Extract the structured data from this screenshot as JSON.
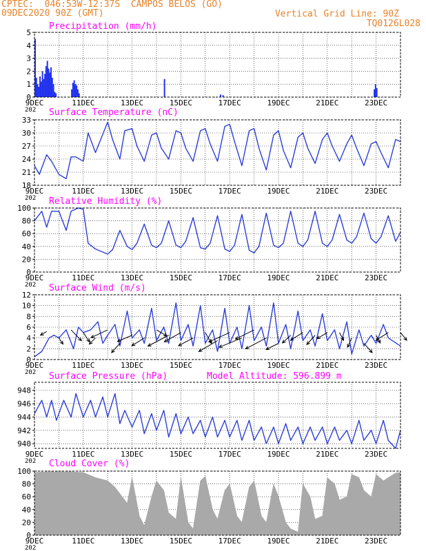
{
  "header": {
    "location": "CPTEC:  046:53W-12:37S  CAMPOS BELOS (GO)",
    "date": "09DEC2020 90Z (GMT)",
    "grid_note": "Vertical Grid Line: 90Z",
    "code": "TQ0126L028"
  },
  "colors": {
    "header": "#e8822a",
    "title": "#ff00ff",
    "series": "#2c3ed8",
    "bar": "#2233ee",
    "cloud": "#a9a9a9",
    "wind_arrow": "#000000"
  },
  "x_ticks": [
    "9DEC",
    "11DEC",
    "13DEC",
    "15DEC",
    "17DEC",
    "19DEC",
    "21DEC",
    "23DEC"
  ],
  "chart_data": [
    {
      "type": "bar",
      "title": "Precipitation (mm/h)",
      "ylim": [
        0,
        5
      ],
      "yticks": [
        0,
        1,
        2,
        3,
        4,
        5
      ],
      "year_label": "202",
      "grid": true,
      "bars": [
        [
          0.0,
          4.5
        ],
        [
          0.05,
          1.5
        ],
        [
          0.1,
          1.0
        ],
        [
          0.15,
          0.8
        ],
        [
          0.2,
          1.6
        ],
        [
          0.25,
          1.2
        ],
        [
          0.3,
          2.0
        ],
        [
          0.35,
          1.4
        ],
        [
          0.4,
          1.8
        ],
        [
          0.45,
          2.4
        ],
        [
          0.5,
          2.8
        ],
        [
          0.55,
          2.2
        ],
        [
          0.6,
          1.9
        ],
        [
          0.65,
          2.3
        ],
        [
          0.7,
          1.5
        ],
        [
          0.75,
          1.0
        ],
        [
          0.8,
          0.4
        ],
        [
          0.85,
          0.3
        ],
        [
          1.5,
          0.6
        ],
        [
          1.55,
          1.1
        ],
        [
          1.6,
          1.3
        ],
        [
          1.65,
          1.0
        ],
        [
          1.7,
          0.9
        ],
        [
          1.75,
          0.6
        ],
        [
          1.8,
          0.3
        ],
        [
          5.3,
          1.4
        ],
        [
          7.6,
          0.2
        ],
        [
          7.7,
          0.15
        ],
        [
          13.9,
          0.6
        ],
        [
          13.95,
          1.0
        ],
        [
          14.0,
          0.7
        ]
      ]
    },
    {
      "type": "line",
      "title": "Surface Temperature (nC)",
      "ylim": [
        18,
        33
      ],
      "yticks": [
        18,
        21,
        24,
        27,
        30,
        33
      ],
      "year_label": "202",
      "grid": true,
      "x": [
        0,
        0.2,
        0.5,
        0.7,
        1.0,
        1.3,
        1.5,
        1.7,
        2.0,
        2.2,
        2.5,
        3.0,
        3.2,
        3.5,
        3.7,
        4.0,
        4.2,
        4.5,
        4.8,
        5.0,
        5.2,
        5.5,
        5.8,
        6.0,
        6.2,
        6.5,
        6.8,
        7.0,
        7.2,
        7.5,
        7.8,
        8.0,
        8.2,
        8.5,
        8.8,
        9.0,
        9.2,
        9.5,
        9.8,
        10.0,
        10.2,
        10.5,
        10.8,
        11.0,
        11.2,
        11.5,
        11.8,
        12.0,
        12.2,
        12.5,
        12.8,
        13.0,
        13.2,
        13.5,
        13.8,
        14.0,
        14.2,
        14.5,
        14.8,
        15.0
      ],
      "y": [
        22.5,
        20.5,
        25.0,
        23.5,
        20.5,
        19.5,
        24.5,
        24.5,
        23.5,
        30.0,
        25.5,
        32.5,
        28.5,
        24.0,
        30.5,
        31.0,
        27.0,
        23.5,
        29.5,
        30.0,
        26.5,
        24.0,
        30.5,
        30.0,
        26.5,
        23.5,
        30.5,
        31.0,
        27.5,
        23.5,
        31.5,
        32.0,
        28.0,
        22.5,
        30.5,
        31.0,
        26.5,
        21.5,
        29.5,
        30.5,
        26.0,
        22.0,
        29.0,
        30.0,
        26.5,
        23.0,
        28.5,
        30.0,
        27.0,
        23.5,
        27.5,
        29.5,
        26.5,
        22.5,
        27.5,
        28.0,
        25.5,
        22.0,
        28.5,
        28.0
      ]
    },
    {
      "type": "line",
      "title": "Relative Humidity (%)",
      "ylim": [
        0,
        100
      ],
      "yticks": [
        0,
        20,
        40,
        60,
        80,
        100
      ],
      "year_label": "202",
      "grid": true,
      "x": [
        0,
        0.3,
        0.5,
        0.7,
        1.0,
        1.3,
        1.5,
        1.8,
        2.0,
        2.2,
        2.5,
        3.0,
        3.2,
        3.5,
        3.8,
        4.0,
        4.2,
        4.5,
        4.8,
        5.0,
        5.2,
        5.5,
        5.8,
        6.0,
        6.2,
        6.5,
        6.8,
        7.0,
        7.2,
        7.5,
        7.8,
        8.0,
        8.2,
        8.5,
        8.8,
        9.0,
        9.2,
        9.5,
        9.8,
        10.0,
        10.2,
        10.5,
        10.8,
        11.0,
        11.2,
        11.5,
        11.8,
        12.0,
        12.2,
        12.5,
        12.8,
        13.0,
        13.2,
        13.5,
        13.8,
        14.0,
        14.2,
        14.5,
        14.8,
        15.0
      ],
      "y": [
        80,
        95,
        70,
        95,
        95,
        65,
        95,
        100,
        98,
        45,
        36,
        28,
        35,
        65,
        40,
        35,
        45,
        75,
        42,
        38,
        45,
        80,
        42,
        38,
        48,
        85,
        38,
        36,
        45,
        88,
        36,
        32,
        42,
        90,
        34,
        30,
        40,
        92,
        42,
        38,
        45,
        95,
        45,
        40,
        50,
        95,
        45,
        40,
        50,
        90,
        50,
        45,
        55,
        92,
        52,
        45,
        55,
        88,
        48,
        62
      ]
    },
    {
      "type": "line",
      "title": "Surface Wind (m/s)",
      "ylim": [
        0,
        12
      ],
      "yticks": [
        0,
        2,
        4,
        6,
        8,
        10,
        12
      ],
      "year_label": "202",
      "grid": true,
      "x": [
        0,
        0.3,
        0.6,
        0.8,
        1.0,
        1.3,
        1.6,
        1.8,
        2.0,
        2.3,
        2.6,
        2.8,
        3.0,
        3.3,
        3.5,
        3.8,
        4.0,
        4.3,
        4.5,
        4.8,
        5.0,
        5.3,
        5.5,
        5.8,
        6.0,
        6.3,
        6.5,
        6.8,
        7.0,
        7.3,
        7.5,
        7.8,
        8.0,
        8.3,
        8.5,
        8.8,
        9.0,
        9.3,
        9.5,
        9.8,
        10.0,
        10.3,
        10.5,
        10.8,
        11.0,
        11.3,
        11.5,
        11.8,
        12.0,
        12.3,
        12.5,
        12.8,
        13.0,
        13.3,
        13.5,
        13.8,
        14.0,
        14.3,
        14.5,
        15.0
      ],
      "y": [
        0.5,
        1.5,
        4.0,
        4.5,
        4.0,
        5.5,
        2.0,
        6.0,
        5.0,
        5.5,
        7.0,
        3.0,
        4.5,
        6.5,
        2.5,
        9.0,
        4.0,
        5.5,
        3.0,
        9.5,
        3.5,
        6.0,
        3.0,
        10.5,
        3.5,
        6.5,
        2.5,
        10.0,
        3.0,
        5.5,
        1.5,
        9.5,
        3.0,
        6.0,
        2.0,
        10.0,
        3.5,
        6.0,
        2.5,
        10.5,
        3.0,
        6.5,
        2.0,
        9.0,
        3.5,
        5.5,
        2.5,
        8.5,
        3.5,
        5.5,
        2.0,
        7.0,
        1.0,
        5.5,
        2.5,
        4.5,
        3.0,
        6.5,
        4.0,
        2.5
      ],
      "arrows": [
        [
          0.5,
          5.2,
          -0.15,
          0.12
        ],
        [
          1.0,
          4.0,
          0.1,
          0.2
        ],
        [
          1.5,
          5.5,
          0.25,
          0.35
        ],
        [
          2.0,
          5.0,
          0.15,
          0.3
        ],
        [
          2.5,
          4.0,
          -0.15,
          0.2
        ],
        [
          3.0,
          5.5,
          -0.4,
          0.25
        ],
        [
          3.5,
          3.0,
          -0.2,
          0.3
        ],
        [
          4.0,
          4.5,
          -0.35,
          0.2
        ],
        [
          4.5,
          4.0,
          -0.3,
          0.25
        ],
        [
          5.0,
          5.5,
          0.25,
          0.2
        ],
        [
          5.5,
          4.5,
          -0.5,
          0.35
        ],
        [
          6.0,
          5.0,
          -0.4,
          0.3
        ],
        [
          6.5,
          4.0,
          -0.35,
          0.25
        ],
        [
          7.0,
          5.0,
          0.15,
          0.35
        ],
        [
          7.5,
          3.5,
          -0.45,
          0.35
        ],
        [
          8.0,
          5.0,
          -0.5,
          0.3
        ],
        [
          8.5,
          4.0,
          -0.55,
          0.3
        ],
        [
          9.0,
          5.5,
          -0.45,
          0.3
        ],
        [
          9.5,
          4.0,
          -0.5,
          0.35
        ],
        [
          10.0,
          3.0,
          -0.3,
          0.2
        ],
        [
          10.5,
          4.5,
          -0.2,
          0.25
        ],
        [
          11.0,
          5.0,
          -0.3,
          0.25
        ],
        [
          11.5,
          4.5,
          -0.2,
          0.3
        ],
        [
          12.0,
          5.0,
          -0.25,
          0.2
        ],
        [
          12.5,
          5.0,
          0.1,
          0.25
        ],
        [
          13.0,
          4.0,
          -0.1,
          0.3
        ],
        [
          13.5,
          3.0,
          0.2,
          0.3
        ],
        [
          14.0,
          4.5,
          0.1,
          0.25
        ],
        [
          14.5,
          5.0,
          -0.3,
          0.25
        ],
        [
          15.0,
          5.0,
          0.15,
          0.25
        ]
      ]
    },
    {
      "type": "line",
      "title": "Surface Pressure (hPa)",
      "note": "Model Altitude: 596.899  m",
      "ylim": [
        939.3,
        949.2
      ],
      "yticks": [
        940,
        942,
        944,
        946,
        948
      ],
      "year_label": "202",
      "grid": true,
      "x": [
        0,
        0.3,
        0.5,
        0.7,
        0.9,
        1.2,
        1.5,
        1.7,
        2.0,
        2.3,
        2.5,
        2.8,
        3.0,
        3.3,
        3.5,
        3.7,
        4.0,
        4.3,
        4.5,
        4.8,
        5.0,
        5.3,
        5.5,
        5.8,
        6.0,
        6.3,
        6.5,
        6.8,
        7.0,
        7.3,
        7.5,
        7.8,
        8.0,
        8.3,
        8.5,
        8.8,
        9.0,
        9.3,
        9.5,
        9.8,
        10.0,
        10.3,
        10.5,
        10.8,
        11.0,
        11.3,
        11.5,
        11.8,
        12.0,
        12.3,
        12.5,
        12.8,
        13.0,
        13.3,
        13.5,
        13.8,
        14.0,
        14.3,
        14.5,
        14.8,
        15.0
      ],
      "y": [
        944.5,
        946.5,
        944.0,
        946.5,
        943.5,
        946.5,
        944.0,
        947.5,
        944.0,
        946.5,
        944.0,
        947.0,
        944.0,
        947.5,
        943.0,
        945.0,
        942.5,
        945.0,
        941.5,
        944.5,
        942.0,
        945.0,
        941.0,
        944.5,
        941.5,
        944.0,
        941.5,
        943.5,
        941.0,
        944.0,
        941.0,
        943.5,
        941.0,
        943.5,
        940.5,
        943.5,
        940.5,
        942.5,
        940.0,
        942.5,
        940.0,
        943.0,
        940.5,
        942.5,
        940.0,
        942.5,
        940.5,
        942.5,
        940.0,
        942.5,
        940.5,
        942.0,
        940.0,
        943.5,
        940.5,
        942.0,
        940.0,
        943.5,
        940.5,
        939.3,
        942.0
      ]
    },
    {
      "type": "area",
      "title": "Cloud Cover (%)",
      "ylim": [
        0,
        100
      ],
      "yticks": [
        0,
        20,
        40,
        60,
        80,
        100
      ],
      "year_label": "202",
      "grid": true,
      "x": [
        0,
        0.5,
        1.0,
        1.5,
        2.0,
        2.5,
        3.0,
        3.3,
        3.6,
        3.8,
        4.0,
        4.3,
        4.5,
        4.8,
        5.0,
        5.3,
        5.5,
        5.8,
        6.0,
        6.3,
        6.5,
        6.8,
        7.0,
        7.3,
        7.5,
        7.8,
        8.0,
        8.3,
        8.5,
        8.8,
        9.0,
        9.3,
        9.5,
        9.8,
        10.0,
        10.3,
        10.5,
        10.8,
        11.0,
        11.3,
        11.5,
        11.8,
        12.0,
        12.3,
        12.5,
        12.8,
        13.0,
        13.3,
        13.5,
        13.8,
        14.0,
        14.3,
        14.5,
        14.8,
        15.0
      ],
      "y": [
        98,
        99,
        99,
        99,
        98,
        90,
        85,
        75,
        60,
        50,
        90,
        30,
        15,
        60,
        85,
        70,
        35,
        25,
        90,
        20,
        10,
        85,
        92,
        40,
        25,
        70,
        80,
        30,
        20,
        75,
        85,
        30,
        20,
        80,
        60,
        20,
        10,
        5,
        80,
        60,
        25,
        30,
        90,
        80,
        55,
        60,
        95,
        90,
        70,
        60,
        95,
        85,
        90,
        97,
        98
      ]
    }
  ]
}
